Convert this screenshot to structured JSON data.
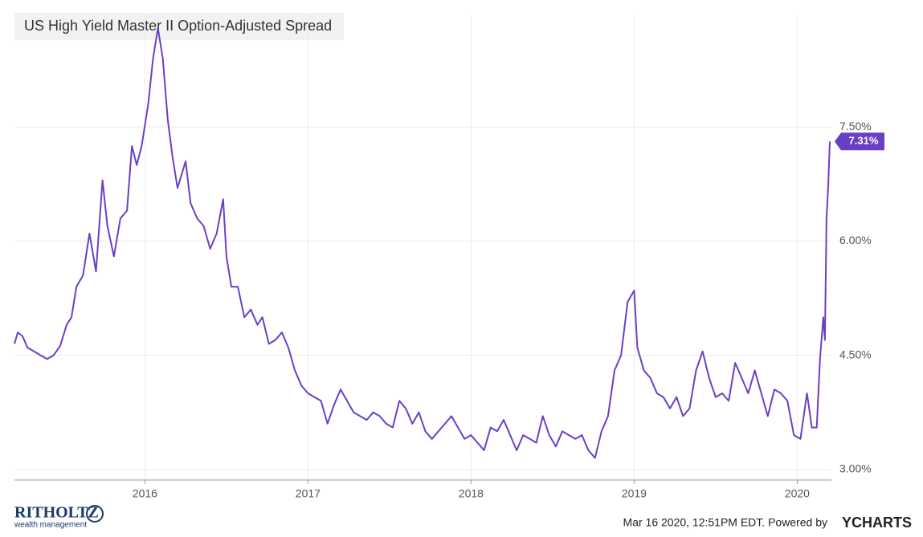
{
  "chart_data": {
    "type": "line",
    "title": "US High Yield Master II Option-Adjusted Spread",
    "color": "#6b3fc4",
    "x": [
      2015.2,
      2015.22,
      2015.25,
      2015.28,
      2015.32,
      2015.36,
      2015.4,
      2015.44,
      2015.48,
      2015.52,
      2015.55,
      2015.58,
      2015.62,
      2015.66,
      2015.7,
      2015.74,
      2015.77,
      2015.81,
      2015.85,
      2015.89,
      2015.92,
      2015.95,
      2015.98,
      2016.02,
      2016.05,
      2016.08,
      2016.11,
      2016.14,
      2016.17,
      2016.2,
      2016.25,
      2016.28,
      2016.32,
      2016.36,
      2016.4,
      2016.44,
      2016.48,
      2016.5,
      2016.53,
      2016.57,
      2016.61,
      2016.65,
      2016.69,
      2016.72,
      2016.76,
      2016.8,
      2016.84,
      2016.88,
      2016.92,
      2016.96,
      2017.0,
      2017.04,
      2017.08,
      2017.12,
      2017.16,
      2017.2,
      2017.24,
      2017.28,
      2017.32,
      2017.36,
      2017.4,
      2017.44,
      2017.48,
      2017.52,
      2017.56,
      2017.6,
      2017.64,
      2017.68,
      2017.72,
      2017.76,
      2017.8,
      2017.84,
      2017.88,
      2017.92,
      2017.96,
      2018.0,
      2018.04,
      2018.08,
      2018.12,
      2018.16,
      2018.2,
      2018.24,
      2018.28,
      2018.32,
      2018.36,
      2018.4,
      2018.44,
      2018.48,
      2018.52,
      2018.56,
      2018.6,
      2018.64,
      2018.68,
      2018.72,
      2018.76,
      2018.8,
      2018.84,
      2018.88,
      2018.92,
      2018.96,
      2019.0,
      2019.02,
      2019.06,
      2019.1,
      2019.14,
      2019.18,
      2019.22,
      2019.26,
      2019.3,
      2019.34,
      2019.38,
      2019.42,
      2019.46,
      2019.5,
      2019.54,
      2019.58,
      2019.62,
      2019.66,
      2019.7,
      2019.74,
      2019.78,
      2019.82,
      2019.86,
      2019.9,
      2019.94,
      2019.98,
      2020.02,
      2020.06,
      2020.09,
      2020.12,
      2020.14,
      2020.16,
      2020.17,
      2020.18,
      2020.19,
      2020.2
    ],
    "values": [
      4.65,
      4.8,
      4.75,
      4.6,
      4.55,
      4.5,
      4.45,
      4.5,
      4.62,
      4.9,
      5.0,
      5.4,
      5.55,
      6.1,
      5.6,
      6.8,
      6.2,
      5.8,
      6.3,
      6.4,
      7.25,
      7.0,
      7.25,
      7.8,
      8.4,
      8.8,
      8.4,
      7.6,
      7.1,
      6.7,
      7.05,
      6.5,
      6.3,
      6.2,
      5.9,
      6.1,
      6.55,
      5.8,
      5.4,
      5.4,
      5.0,
      5.1,
      4.9,
      5.0,
      4.65,
      4.7,
      4.8,
      4.6,
      4.3,
      4.1,
      4.0,
      3.95,
      3.9,
      3.6,
      3.85,
      4.05,
      3.9,
      3.75,
      3.7,
      3.65,
      3.75,
      3.7,
      3.6,
      3.55,
      3.9,
      3.8,
      3.6,
      3.75,
      3.5,
      3.4,
      3.5,
      3.6,
      3.7,
      3.55,
      3.4,
      3.45,
      3.35,
      3.25,
      3.55,
      3.5,
      3.65,
      3.45,
      3.25,
      3.45,
      3.4,
      3.35,
      3.7,
      3.45,
      3.3,
      3.5,
      3.45,
      3.4,
      3.45,
      3.25,
      3.15,
      3.5,
      3.7,
      4.3,
      4.5,
      5.2,
      5.35,
      4.6,
      4.3,
      4.2,
      4.0,
      3.95,
      3.8,
      3.95,
      3.7,
      3.8,
      4.3,
      4.55,
      4.2,
      3.95,
      4.0,
      3.9,
      4.4,
      4.2,
      4.0,
      4.3,
      4.0,
      3.7,
      4.05,
      4.0,
      3.9,
      3.45,
      3.4,
      4.0,
      3.55,
      3.55,
      4.45,
      5.0,
      4.7,
      6.3,
      6.7,
      7.31
    ],
    "last_label": "7.31%",
    "xlim": [
      2015.2,
      2020.21
    ],
    "xticks": [
      2016,
      2017,
      2018,
      2019,
      2020
    ],
    "ylim": [
      2.86,
      8.98
    ],
    "yticks": [
      {
        "value": 3,
        "label": "3.00%"
      },
      {
        "value": 4.5,
        "label": "4.50%"
      },
      {
        "value": 6,
        "label": "6.00%"
      },
      {
        "value": 7.5,
        "label": "7.50%"
      }
    ],
    "grid": true
  },
  "footer": {
    "timestamp": "Mar 16 2020, 12:51PM EDT. Powered by",
    "brand": "YCHARTS",
    "logo_name": "RITHOLTZ",
    "logo_sub": "wealth management"
  }
}
